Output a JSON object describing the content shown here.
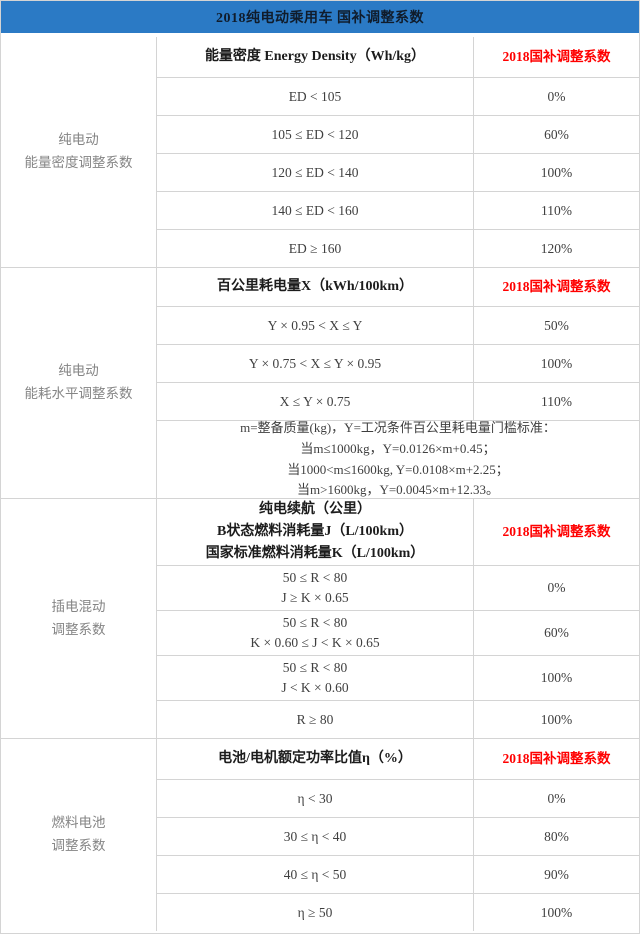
{
  "title": "2018纯电动乘用车 国补调整系数",
  "colors": {
    "header_bg": "#2b7ac5",
    "coef_header_red": "#ff0000",
    "border": "#d4d4d4"
  },
  "sections": [
    {
      "label": "纯电动\n能量密度调整系数",
      "header": "能量密度 Energy Density（Wh/kg）",
      "coef_header": "2018国补调整系数",
      "rows": [
        {
          "condition": "ED < 105",
          "value": "0%"
        },
        {
          "condition": "105 ≤ ED < 120",
          "value": "60%"
        },
        {
          "condition": "120 ≤ ED < 140",
          "value": "100%"
        },
        {
          "condition": "140 ≤ ED < 160",
          "value": "110%"
        },
        {
          "condition": "ED ≥ 160",
          "value": "120%"
        }
      ]
    },
    {
      "label": "纯电动\n能耗水平调整系数",
      "header": "百公里耗电量X（kWh/100km）",
      "coef_header": "2018国补调整系数",
      "rows": [
        {
          "condition": "Y × 0.95 < X ≤ Y",
          "value": "50%"
        },
        {
          "condition": "Y × 0.75 < X ≤ Y × 0.95",
          "value": "100%"
        },
        {
          "condition": "X ≤ Y × 0.75",
          "value": "110%"
        }
      ],
      "note": "m=整备质量(kg)，Y=工况条件百公里耗电量门槛标准：\n当m≤1000kg，Y=0.0126×m+0.45；\n当1000<m≤1600kg, Y=0.0108×m+2.25；\n当m>1600kg，Y=0.0045×m+12.33。"
    },
    {
      "label": "插电混动\n调整系数",
      "header": "纯电续航（公里）\nB状态燃料消耗量J（L/100km）\n国家标准燃料消耗量K（L/100km）",
      "coef_header": "2018国补调整系数",
      "rows": [
        {
          "condition": "50 ≤ R < 80\nJ ≥ K × 0.65",
          "value": "0%"
        },
        {
          "condition": "50 ≤ R < 80\nK × 0.60 ≤ J < K × 0.65",
          "value": "60%"
        },
        {
          "condition": "50 ≤ R < 80\nJ < K × 0.60",
          "value": "100%"
        },
        {
          "condition": "R ≥ 80",
          "value": "100%"
        }
      ]
    },
    {
      "label": "燃料电池\n调整系数",
      "header": "电池/电机额定功率比值η（%）",
      "coef_header": "2018国补调整系数",
      "rows": [
        {
          "condition": "η < 30",
          "value": "0%"
        },
        {
          "condition": "30 ≤ η < 40",
          "value": "80%"
        },
        {
          "condition": "40 ≤ η < 50",
          "value": "90%"
        },
        {
          "condition": "η ≥ 50",
          "value": "100%"
        }
      ]
    }
  ]
}
